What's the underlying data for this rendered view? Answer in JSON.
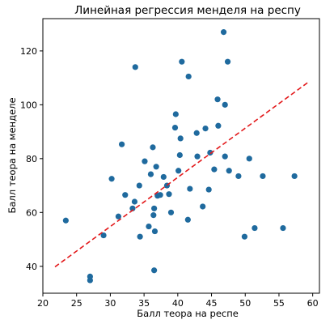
{
  "chart_data": {
    "type": "scatter",
    "title": "Линейная регрессия менделя на респу",
    "xlabel": "Балл теора на респе",
    "ylabel": "Балл теора на менделе",
    "xlim": [
      20,
      61
    ],
    "ylim": [
      30,
      132
    ],
    "x_ticks": [
      20,
      25,
      30,
      35,
      40,
      45,
      50,
      55,
      60
    ],
    "y_ticks": [
      40,
      60,
      80,
      100,
      120
    ],
    "grid": false,
    "point_color": "#1f6a9e",
    "series": [
      {
        "name": "",
        "type": "scatter",
        "x": [
          23.4,
          27.0,
          27.0,
          29.0,
          30.2,
          31.2,
          31.7,
          32.2,
          33.3,
          33.6,
          33.7,
          34.3,
          34.4,
          35.1,
          35.7,
          36.0,
          36.3,
          36.4,
          36.5,
          36.5,
          36.6,
          36.8,
          37.0,
          37.4,
          37.9,
          38.4,
          38.7,
          39.0,
          39.6,
          39.7,
          40.1,
          40.3,
          40.4,
          40.6,
          41.5,
          41.6,
          41.8,
          42.8,
          42.9,
          43.7,
          44.1,
          44.6,
          44.8,
          45.4,
          45.9,
          46.0,
          46.8,
          47.0,
          47.0,
          47.4,
          47.6,
          49.0,
          49.9,
          50.6,
          51.4,
          52.6,
          55.6,
          57.3
        ],
        "y": [
          57.0,
          36.2,
          34.8,
          51.5,
          72.5,
          58.5,
          85.3,
          66.5,
          61.5,
          64.0,
          114.0,
          70.0,
          51.0,
          79.0,
          54.8,
          74.2,
          84.2,
          59.0,
          61.5,
          38.5,
          53.0,
          77.0,
          66.2,
          66.5,
          73.2,
          70.0,
          66.8,
          60.0,
          91.5,
          96.5,
          75.5,
          81.3,
          87.5,
          116.0,
          57.3,
          110.5,
          68.8,
          89.5,
          80.8,
          62.2,
          91.2,
          68.5,
          82.2,
          76.0,
          102.0,
          92.2,
          127.0,
          100.0,
          80.8,
          116.0,
          75.5,
          73.5,
          51.0,
          80.0,
          54.2,
          73.5,
          54.2,
          73.5
        ]
      },
      {
        "name": "",
        "type": "line",
        "style": "dashed",
        "color": "#e31a1c",
        "x": [
          21.8,
          59.3
        ],
        "y": [
          39.8,
          108.3
        ]
      }
    ]
  }
}
